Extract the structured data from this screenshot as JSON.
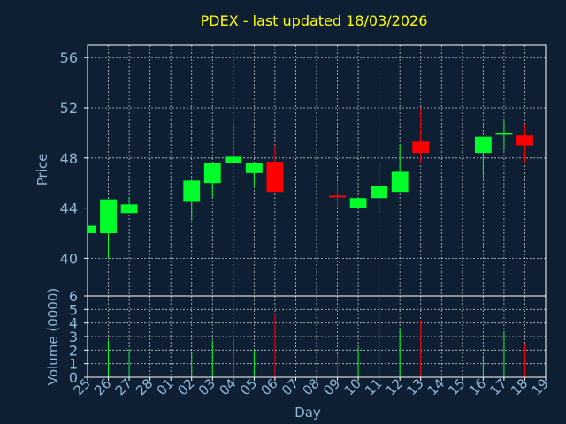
{
  "chart_data": {
    "type": "candlestick",
    "title": "PDEX - last updated 18/03/2026",
    "xlabel": "Day",
    "colors": {
      "background": "#0f1f33",
      "up": "#00ff2a",
      "down": "#ff0000",
      "grid": "#ffffff",
      "axis": "#ffffff",
      "text": "#8fb7d6",
      "title": "#ffff00"
    },
    "price_panel": {
      "ylabel": "Price",
      "ylim": [
        37,
        57
      ],
      "yticks": [
        "40",
        "44",
        "48",
        "52",
        "56"
      ],
      "ytick_values": [
        40,
        44,
        48,
        52,
        56
      ],
      "grid": true
    },
    "volume_panel": {
      "ylabel": "Volume (0000)",
      "ylim": [
        0,
        6
      ],
      "yticks": [
        "0",
        "1",
        "2",
        "3",
        "4",
        "5",
        "6"
      ],
      "ytick_values": [
        0,
        1,
        2,
        3,
        4,
        5,
        6
      ],
      "grid": true
    },
    "x_ticks": [
      "25",
      "26",
      "27",
      "28",
      "01",
      "02",
      "03",
      "04",
      "05",
      "06",
      "07",
      "08",
      "09",
      "10",
      "11",
      "12",
      "13",
      "14",
      "15",
      "16",
      "17",
      "18",
      "19"
    ],
    "candles": [
      {
        "day": "25",
        "open": 42.0,
        "close": 42.6,
        "high": 42.6,
        "low": 42.0,
        "volume": 0
      },
      {
        "day": "26",
        "open": 42.0,
        "close": 44.7,
        "high": 44.7,
        "low": 40.0,
        "volume": 2.7
      },
      {
        "day": "27",
        "open": 43.6,
        "close": 44.3,
        "high": 44.9,
        "low": 43.6,
        "volume": 2.1
      },
      {
        "day": "02",
        "open": 44.5,
        "close": 46.2,
        "high": 46.2,
        "low": 43.0,
        "volume": 1.9
      },
      {
        "day": "03",
        "open": 46.0,
        "close": 47.6,
        "high": 47.6,
        "low": 44.8,
        "volume": 2.7
      },
      {
        "day": "04",
        "open": 47.6,
        "close": 48.1,
        "high": 50.6,
        "low": 47.6,
        "volume": 2.8
      },
      {
        "day": "05",
        "open": 46.8,
        "close": 47.6,
        "high": 47.6,
        "low": 45.7,
        "volume": 2.0
      },
      {
        "day": "06",
        "open": 47.7,
        "close": 45.3,
        "high": 49.0,
        "low": 45.3,
        "volume": 4.7
      },
      {
        "day": "09",
        "open": 45.0,
        "close": 44.9,
        "high": 46.0,
        "low": 44.0,
        "volume": 1.7
      },
      {
        "day": "10",
        "open": 44.0,
        "close": 44.8,
        "high": 44.8,
        "low": 44.0,
        "volume": 2.2
      },
      {
        "day": "11",
        "open": 44.8,
        "close": 45.8,
        "high": 47.7,
        "low": 43.6,
        "volume": 5.9
      },
      {
        "day": "12",
        "open": 45.3,
        "close": 46.9,
        "high": 49.1,
        "low": 45.3,
        "volume": 3.6
      },
      {
        "day": "13",
        "open": 49.3,
        "close": 48.4,
        "high": 52.0,
        "low": 47.6,
        "volume": 4.2
      },
      {
        "day": "16",
        "open": 48.4,
        "close": 49.7,
        "high": 49.7,
        "low": 46.6,
        "volume": 1.6
      },
      {
        "day": "17",
        "open": 49.9,
        "close": 50.0,
        "high": 51.0,
        "low": 48.6,
        "volume": 3.4
      },
      {
        "day": "18",
        "open": 49.8,
        "close": 49.0,
        "high": 50.7,
        "low": 47.6,
        "volume": 2.5
      }
    ]
  }
}
